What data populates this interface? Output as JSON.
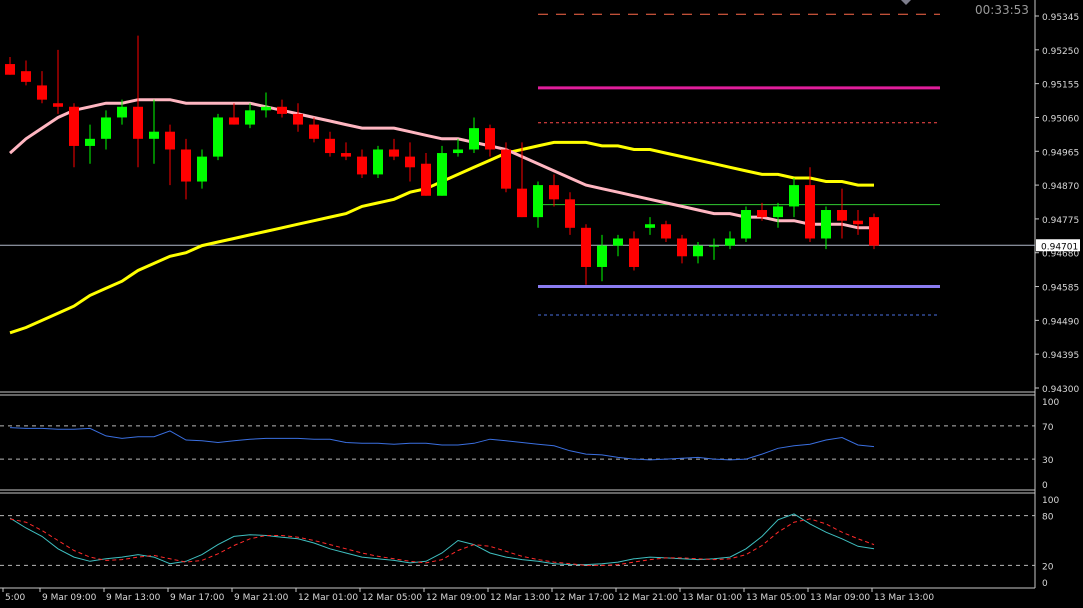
{
  "timer": "00:33:53",
  "price_badge": "0.94701",
  "colors": {
    "background": "#000000",
    "bull": "#00ff00",
    "bear": "#ff0000",
    "ma_fast": "#ffb6c1",
    "ma_slow": "#ffff00",
    "magenta_level": "#e01e9b",
    "violet_level": "#8a7cf0",
    "rsi_line": "#3a6fe0",
    "stoch_main": "#3fbfc0",
    "stoch_signal": "#ff2a2a"
  },
  "chart_data": {
    "type": "candlestick",
    "price_axis": {
      "ticks": [
        "0.95345",
        "0.95250",
        "0.95155",
        "0.95060",
        "0.94965",
        "0.94870",
        "0.94775",
        "0.94680",
        "0.94585",
        "0.94490",
        "0.94395",
        "0.94300"
      ],
      "range": [
        0.943,
        0.95345
      ]
    },
    "time_axis": {
      "labels": [
        "5:00",
        "9 Mar 09:00",
        "9 Mar 13:00",
        "9 Mar 17:00",
        "9 Mar 21:00",
        "12 Mar 01:00",
        "12 Mar 05:00",
        "12 Mar 09:00",
        "12 Mar 13:00",
        "12 Mar 17:00",
        "12 Mar 21:00",
        "13 Mar 01:00",
        "13 Mar 05:00",
        "13 Mar 09:00",
        "13 Mar 13:00"
      ]
    },
    "candles": [
      {
        "o": 0.9521,
        "h": 0.9523,
        "l": 0.9518,
        "c": 0.9518
      },
      {
        "o": 0.9519,
        "h": 0.9522,
        "l": 0.9515,
        "c": 0.9516
      },
      {
        "o": 0.9515,
        "h": 0.9519,
        "l": 0.951,
        "c": 0.9511
      },
      {
        "o": 0.951,
        "h": 0.9525,
        "l": 0.9507,
        "c": 0.9509
      },
      {
        "o": 0.9509,
        "h": 0.951,
        "l": 0.9492,
        "c": 0.9498
      },
      {
        "o": 0.9498,
        "h": 0.9504,
        "l": 0.9493,
        "c": 0.95
      },
      {
        "o": 0.95,
        "h": 0.9508,
        "l": 0.9497,
        "c": 0.9506
      },
      {
        "o": 0.9506,
        "h": 0.9511,
        "l": 0.9504,
        "c": 0.9509
      },
      {
        "o": 0.9509,
        "h": 0.9529,
        "l": 0.9492,
        "c": 0.95
      },
      {
        "o": 0.95,
        "h": 0.9511,
        "l": 0.9493,
        "c": 0.9502
      },
      {
        "o": 0.9502,
        "h": 0.9504,
        "l": 0.9487,
        "c": 0.9497
      },
      {
        "o": 0.9497,
        "h": 0.95,
        "l": 0.9483,
        "c": 0.9488
      },
      {
        "o": 0.9488,
        "h": 0.9497,
        "l": 0.9486,
        "c": 0.9495
      },
      {
        "o": 0.9495,
        "h": 0.9507,
        "l": 0.9494,
        "c": 0.9506
      },
      {
        "o": 0.9506,
        "h": 0.951,
        "l": 0.9504,
        "c": 0.9504
      },
      {
        "o": 0.9504,
        "h": 0.951,
        "l": 0.9503,
        "c": 0.9508
      },
      {
        "o": 0.9508,
        "h": 0.9513,
        "l": 0.9506,
        "c": 0.9509
      },
      {
        "o": 0.9509,
        "h": 0.9511,
        "l": 0.9506,
        "c": 0.9507
      },
      {
        "o": 0.9507,
        "h": 0.951,
        "l": 0.9502,
        "c": 0.9504
      },
      {
        "o": 0.9504,
        "h": 0.9506,
        "l": 0.9499,
        "c": 0.95
      },
      {
        "o": 0.95,
        "h": 0.9502,
        "l": 0.9495,
        "c": 0.9496
      },
      {
        "o": 0.9496,
        "h": 0.9499,
        "l": 0.9494,
        "c": 0.9495
      },
      {
        "o": 0.9495,
        "h": 0.9497,
        "l": 0.9489,
        "c": 0.949
      },
      {
        "o": 0.949,
        "h": 0.9498,
        "l": 0.9489,
        "c": 0.9497
      },
      {
        "o": 0.9497,
        "h": 0.95,
        "l": 0.9494,
        "c": 0.9495
      },
      {
        "o": 0.9495,
        "h": 0.9499,
        "l": 0.9488,
        "c": 0.9492
      },
      {
        "o": 0.9493,
        "h": 0.9496,
        "l": 0.9484,
        "c": 0.9484
      },
      {
        "o": 0.9484,
        "h": 0.9498,
        "l": 0.9484,
        "c": 0.9496
      },
      {
        "o": 0.9496,
        "h": 0.95,
        "l": 0.9495,
        "c": 0.9497
      },
      {
        "o": 0.9497,
        "h": 0.9506,
        "l": 0.9496,
        "c": 0.9503
      },
      {
        "o": 0.9503,
        "h": 0.9504,
        "l": 0.9495,
        "c": 0.9497
      },
      {
        "o": 0.9497,
        "h": 0.9499,
        "l": 0.9485,
        "c": 0.9486
      },
      {
        "o": 0.9486,
        "h": 0.9499,
        "l": 0.9478,
        "c": 0.9478
      },
      {
        "o": 0.9478,
        "h": 0.9488,
        "l": 0.9475,
        "c": 0.9487
      },
      {
        "o": 0.9487,
        "h": 0.949,
        "l": 0.9481,
        "c": 0.9483
      },
      {
        "o": 0.9483,
        "h": 0.9485,
        "l": 0.9473,
        "c": 0.9475
      },
      {
        "o": 0.9475,
        "h": 0.9476,
        "l": 0.9459,
        "c": 0.9464
      },
      {
        "o": 0.9464,
        "h": 0.9473,
        "l": 0.946,
        "c": 0.947
      },
      {
        "o": 0.947,
        "h": 0.9473,
        "l": 0.9467,
        "c": 0.9472
      },
      {
        "o": 0.9472,
        "h": 0.9474,
        "l": 0.9463,
        "c": 0.9464
      },
      {
        "o": 0.9475,
        "h": 0.9478,
        "l": 0.9473,
        "c": 0.9476
      },
      {
        "o": 0.9476,
        "h": 0.9477,
        "l": 0.9471,
        "c": 0.9472
      },
      {
        "o": 0.9472,
        "h": 0.9473,
        "l": 0.9465,
        "c": 0.9467
      },
      {
        "o": 0.9467,
        "h": 0.9471,
        "l": 0.9465,
        "c": 0.947
      },
      {
        "o": 0.947,
        "h": 0.9472,
        "l": 0.9466,
        "c": 0.947
      },
      {
        "o": 0.947,
        "h": 0.9474,
        "l": 0.9469,
        "c": 0.9472
      },
      {
        "o": 0.9472,
        "h": 0.9481,
        "l": 0.9471,
        "c": 0.948
      },
      {
        "o": 0.948,
        "h": 0.9482,
        "l": 0.9477,
        "c": 0.9478
      },
      {
        "o": 0.9478,
        "h": 0.9482,
        "l": 0.9475,
        "c": 0.9481
      },
      {
        "o": 0.9481,
        "h": 0.9489,
        "l": 0.9478,
        "c": 0.9487
      },
      {
        "o": 0.9487,
        "h": 0.9492,
        "l": 0.9471,
        "c": 0.9472
      },
      {
        "o": 0.9472,
        "h": 0.9481,
        "l": 0.9469,
        "c": 0.948
      },
      {
        "o": 0.948,
        "h": 0.9486,
        "l": 0.9472,
        "c": 0.9477
      },
      {
        "o": 0.9477,
        "h": 0.948,
        "l": 0.9473,
        "c": 0.9476
      },
      {
        "o": 0.9478,
        "h": 0.9479,
        "l": 0.9469,
        "c": 0.947
      }
    ],
    "ma_fast": [
      0.9496,
      0.95,
      0.9503,
      0.9506,
      0.9508,
      0.9509,
      0.951,
      0.951,
      0.9511,
      0.9511,
      0.9511,
      0.951,
      0.951,
      0.951,
      0.951,
      0.951,
      0.9509,
      0.9508,
      0.9507,
      0.9506,
      0.9505,
      0.9504,
      0.9503,
      0.9503,
      0.9503,
      0.9502,
      0.9501,
      0.95,
      0.95,
      0.9499,
      0.9498,
      0.9497,
      0.9495,
      0.9493,
      0.9491,
      0.9489,
      0.9487,
      0.9486,
      0.9485,
      0.9484,
      0.9483,
      0.9482,
      0.9481,
      0.948,
      0.9479,
      0.9479,
      0.9478,
      0.9478,
      0.9477,
      0.9477,
      0.9476,
      0.9476,
      0.9476,
      0.9475,
      0.9475
    ],
    "ma_slow": [
      0.94455,
      0.9447,
      0.9449,
      0.9451,
      0.9453,
      0.9456,
      0.9458,
      0.946,
      0.9463,
      0.9465,
      0.9467,
      0.9468,
      0.947,
      0.9471,
      0.9472,
      0.9473,
      0.9474,
      0.9475,
      0.9476,
      0.9477,
      0.9478,
      0.9479,
      0.9481,
      0.9482,
      0.9483,
      0.9485,
      0.9486,
      0.9488,
      0.949,
      0.9492,
      0.9494,
      0.9496,
      0.9497,
      0.9498,
      0.9499,
      0.9499,
      0.9499,
      0.9498,
      0.9498,
      0.9497,
      0.9497,
      0.9496,
      0.9495,
      0.9494,
      0.9493,
      0.9492,
      0.9491,
      0.949,
      0.949,
      0.9489,
      0.9489,
      0.9488,
      0.9488,
      0.9487,
      0.9487
    ],
    "levels": [
      {
        "price": 0.9535,
        "style": "dash",
        "color": "#ff6a4a"
      },
      {
        "price": 0.95143,
        "style": "solid",
        "color": "#e01e9b"
      },
      {
        "price": 0.95045,
        "style": "dot",
        "color": "#ff4a4a"
      },
      {
        "price": 0.94815,
        "style": "thin",
        "color": "#33cc33"
      },
      {
        "price": 0.94701,
        "style": "thin",
        "color": "#b0b8c8"
      },
      {
        "price": 0.94585,
        "style": "solid",
        "color": "#8a7cf0"
      },
      {
        "price": 0.94505,
        "style": "dot",
        "color": "#4a70e0"
      }
    ],
    "rsi": {
      "ticks": [
        "100",
        "70",
        "30",
        "0"
      ],
      "levels": [
        70,
        30
      ],
      "values": [
        68,
        67,
        67,
        66,
        66,
        67,
        58,
        55,
        57,
        57,
        64,
        53,
        52,
        50,
        52,
        54,
        55,
        55,
        55,
        54,
        54,
        50,
        49,
        49,
        48,
        49,
        49,
        47,
        47,
        49,
        54,
        52,
        50,
        48,
        46,
        40,
        36,
        35,
        32,
        30,
        29,
        30,
        31,
        32,
        30,
        29,
        30,
        36,
        43,
        46,
        48,
        53,
        56,
        47,
        45
      ]
    },
    "stochastic": {
      "ticks": [
        "100",
        "80",
        "20",
        "0"
      ],
      "levels": [
        80,
        20
      ],
      "main": [
        77,
        65,
        55,
        40,
        30,
        25,
        28,
        30,
        33,
        30,
        22,
        25,
        33,
        45,
        55,
        57,
        56,
        54,
        52,
        47,
        40,
        35,
        30,
        28,
        26,
        23,
        25,
        35,
        50,
        45,
        35,
        30,
        27,
        25,
        22,
        21,
        21,
        22,
        24,
        28,
        30,
        29,
        28,
        27,
        28,
        30,
        40,
        55,
        75,
        82,
        70,
        60,
        52,
        43,
        40
      ],
      "signal": [
        76,
        72,
        62,
        50,
        38,
        30,
        26,
        27,
        30,
        32,
        28,
        24,
        26,
        34,
        44,
        52,
        56,
        56,
        54,
        50,
        45,
        40,
        35,
        31,
        28,
        25,
        23,
        27,
        38,
        45,
        43,
        37,
        31,
        27,
        24,
        22,
        20,
        20,
        21,
        24,
        27,
        29,
        29,
        28,
        27,
        28,
        33,
        44,
        60,
        72,
        76,
        70,
        60,
        52,
        45
      ]
    }
  }
}
